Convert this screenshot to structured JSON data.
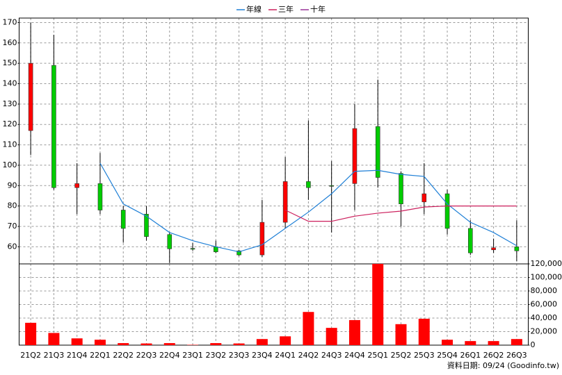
{
  "chart_data": [
    {
      "type": "candlestick",
      "categories": [
        "21Q2",
        "21Q3",
        "21Q4",
        "22Q1",
        "22Q2",
        "22Q3",
        "22Q4",
        "23Q1",
        "23Q2",
        "23Q3",
        "23Q4",
        "24Q1",
        "24Q2",
        "24Q3",
        "24Q4",
        "25Q1",
        "25Q2",
        "25Q3",
        "25Q4",
        "26Q1",
        "26Q2",
        "26Q3"
      ],
      "open": [
        117,
        149,
        89,
        91,
        78,
        76,
        66,
        59.2,
        60,
        58,
        56,
        72,
        92,
        90,
        91,
        119,
        96,
        82,
        86,
        69,
        58.5,
        60
      ],
      "high": [
        170,
        164,
        101,
        106,
        80,
        80,
        67,
        62,
        63,
        58.5,
        83,
        104,
        122,
        102,
        130,
        142,
        97,
        101,
        88,
        73,
        64,
        73
      ],
      "low": [
        105,
        88,
        76,
        76,
        62,
        63,
        52,
        58,
        57,
        55.5,
        55,
        69,
        83,
        67,
        78,
        89,
        70,
        76,
        66,
        56,
        57,
        53
      ],
      "close": [
        150,
        89,
        91,
        78,
        69,
        65,
        59,
        58.8,
        57.5,
        56,
        72,
        92,
        89,
        89.8,
        118,
        94,
        81,
        86,
        69,
        57,
        59.5,
        58
      ],
      "up_color": "#ff0000",
      "down_color": "#00cc00",
      "series": [
        {
          "name": "年線",
          "color": "#1e7fd6",
          "values": [
            null,
            null,
            null,
            101,
            81,
            75,
            67,
            63,
            60,
            57.5,
            61,
            69,
            77,
            86,
            97,
            97.5,
            95.5,
            94.5,
            81,
            72,
            67,
            60.5
          ]
        },
        {
          "name": "三年",
          "color": "#cc1f5c",
          "values": [
            null,
            null,
            null,
            null,
            null,
            null,
            null,
            null,
            null,
            null,
            null,
            78,
            72.5,
            72.5,
            75,
            76.5,
            77.5,
            79.5,
            80,
            80,
            80,
            80
          ]
        },
        {
          "name": "十年",
          "color": "#993399",
          "values": [
            null,
            null,
            null,
            null,
            null,
            null,
            null,
            null,
            null,
            null,
            null,
            null,
            null,
            null,
            null,
            null,
            null,
            null,
            null,
            null,
            null,
            null
          ]
        }
      ],
      "ylim": [
        51.6,
        172.2
      ],
      "yticks": [
        60,
        70,
        80,
        90,
        100,
        110,
        120,
        130,
        140,
        150,
        160,
        170
      ],
      "grid": true,
      "legend": "top"
    },
    {
      "type": "bar",
      "values": [
        33000,
        18000,
        10000,
        8000,
        3000,
        2500,
        3000,
        500,
        3000,
        2500,
        9000,
        13000,
        49000,
        25500,
        37000,
        120000,
        31000,
        39000,
        8000,
        6000,
        6000,
        9000
      ],
      "color": "#ff0000",
      "ylim": [
        0,
        120000
      ],
      "yticks": [
        0,
        {
          "value": 20000,
          "label": "20,000"
        },
        {
          "value": 40000,
          "label": "40,000"
        },
        {
          "value": 60000,
          "label": "60,000"
        },
        {
          "value": 80000,
          "label": "80,000"
        },
        {
          "value": 100000,
          "label": "100,000"
        },
        {
          "value": 120000,
          "label": "120,000"
        }
      ],
      "grid": true
    }
  ],
  "footer": "資料日期: 09/24  (Goodinfo.tw)"
}
